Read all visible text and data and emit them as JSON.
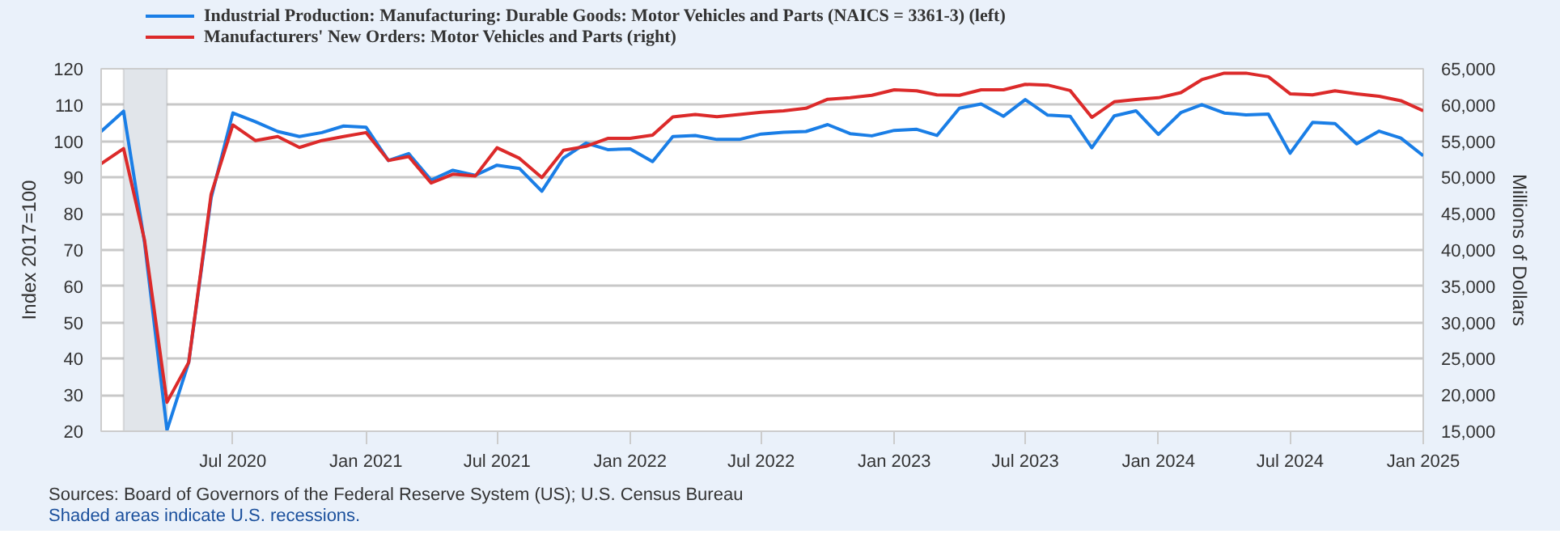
{
  "chart_data": {
    "type": "line",
    "x": [
      "2020-01",
      "2020-02",
      "2020-03",
      "2020-04",
      "2020-05",
      "2020-06",
      "2020-07",
      "2020-08",
      "2020-09",
      "2020-10",
      "2020-11",
      "2020-12",
      "2021-01",
      "2021-02",
      "2021-03",
      "2021-04",
      "2021-05",
      "2021-06",
      "2021-07",
      "2021-08",
      "2021-09",
      "2021-10",
      "2021-11",
      "2021-12",
      "2022-01",
      "2022-02",
      "2022-03",
      "2022-04",
      "2022-05",
      "2022-06",
      "2022-07",
      "2022-08",
      "2022-09",
      "2022-10",
      "2022-11",
      "2022-12",
      "2023-01",
      "2023-02",
      "2023-03",
      "2023-04",
      "2023-05",
      "2023-06",
      "2023-07",
      "2023-08",
      "2023-09",
      "2023-10",
      "2023-11",
      "2023-12",
      "2024-01",
      "2024-02",
      "2024-03",
      "2024-04",
      "2024-05",
      "2024-06",
      "2024-07",
      "2024-08",
      "2024-09",
      "2024-10",
      "2024-11",
      "2024-12",
      "2025-01"
    ],
    "series": [
      {
        "name": "Industrial Production: Manufacturing: Durable Goods: Motor Vehicles and Parts (NAICS = 3361-3) (left)",
        "color": "#1a7ee6",
        "values": [
          102.7,
          108.3,
          72,
          20.3,
          39,
          84.4,
          107.8,
          105.4,
          102.7,
          101.3,
          102.4,
          104.2,
          103.9,
          94.7,
          96.6,
          89.3,
          92,
          90.6,
          93.4,
          92.5,
          86.2,
          95.4,
          99.5,
          97.7,
          97.9,
          94.4,
          101.3,
          101.6,
          100.5,
          100.5,
          102,
          102.5,
          102.7,
          104.6,
          102.1,
          101.5,
          103,
          103.3,
          101.6,
          109.1,
          110.3,
          106.9,
          111.5,
          107.2,
          106.9,
          98.2,
          107,
          108.4,
          101.9,
          107.9,
          110.1,
          107.8,
          107.3,
          107.5,
          96.7,
          105.2,
          104.9,
          99.3,
          102.8,
          100.9,
          96
        ]
      },
      {
        "name": "Manufacturers' New Orders: Motor Vehicles and Parts (right)",
        "color": "#dc2a2a",
        "axis": "y2",
        "values": [
          51900,
          54000,
          41350,
          19000,
          24500,
          47700,
          57250,
          55100,
          55650,
          54150,
          55100,
          55650,
          56200,
          52350,
          52900,
          49250,
          50450,
          50200,
          54100,
          52650,
          50000,
          53750,
          54300,
          55400,
          55400,
          55850,
          58350,
          58700,
          58400,
          58700,
          59000,
          59200,
          59550,
          60800,
          61000,
          61350,
          62100,
          61950,
          61400,
          61350,
          62100,
          62100,
          62850,
          62750,
          62000,
          58300,
          60450,
          60750,
          61000,
          61700,
          63500,
          64400,
          64400,
          63900,
          61550,
          61400,
          61950,
          61550,
          61200,
          60600,
          59200
        ]
      }
    ],
    "xlim": [
      "2020-01",
      "2025-01"
    ],
    "xticks": [
      {
        "value": "2020-07",
        "label": "Jul 2020"
      },
      {
        "value": "2021-01",
        "label": "Jan 2021"
      },
      {
        "value": "2021-07",
        "label": "Jul 2021"
      },
      {
        "value": "2022-01",
        "label": "Jan 2022"
      },
      {
        "value": "2022-07",
        "label": "Jul 2022"
      },
      {
        "value": "2023-01",
        "label": "Jan 2023"
      },
      {
        "value": "2023-07",
        "label": "Jul 2023"
      },
      {
        "value": "2024-01",
        "label": "Jan 2024"
      },
      {
        "value": "2024-07",
        "label": "Jul 2024"
      },
      {
        "value": "2025-01",
        "label": "Jan 2025"
      }
    ],
    "ylim": [
      20,
      120
    ],
    "yticks": [
      20,
      30,
      40,
      50,
      60,
      70,
      80,
      90,
      100,
      110,
      120
    ],
    "y2lim": [
      15000,
      65000
    ],
    "y2ticks": [
      {
        "value": 15000,
        "label": "15,000"
      },
      {
        "value": 20000,
        "label": "20,000"
      },
      {
        "value": 25000,
        "label": "25,000"
      },
      {
        "value": 30000,
        "label": "30,000"
      },
      {
        "value": 35000,
        "label": "35,000"
      },
      {
        "value": 40000,
        "label": "40,000"
      },
      {
        "value": 45000,
        "label": "45,000"
      },
      {
        "value": 50000,
        "label": "50,000"
      },
      {
        "value": 55000,
        "label": "55,000"
      },
      {
        "value": 60000,
        "label": "60,000"
      },
      {
        "value": 65000,
        "label": "65,000"
      }
    ],
    "ylabel": "Index 2017=100",
    "y2label": "Millions of Dollars",
    "bands": [
      {
        "axis": "x",
        "from": "2020-02",
        "to": "2020-04",
        "color": "#e1e5ea"
      }
    ],
    "grid": "y",
    "legend": "top",
    "annotations": [
      "Sources: Board of Governors of the Federal Reserve System (US); U.S. Census Bureau",
      "Shaded areas indicate U.S. recessions."
    ]
  }
}
